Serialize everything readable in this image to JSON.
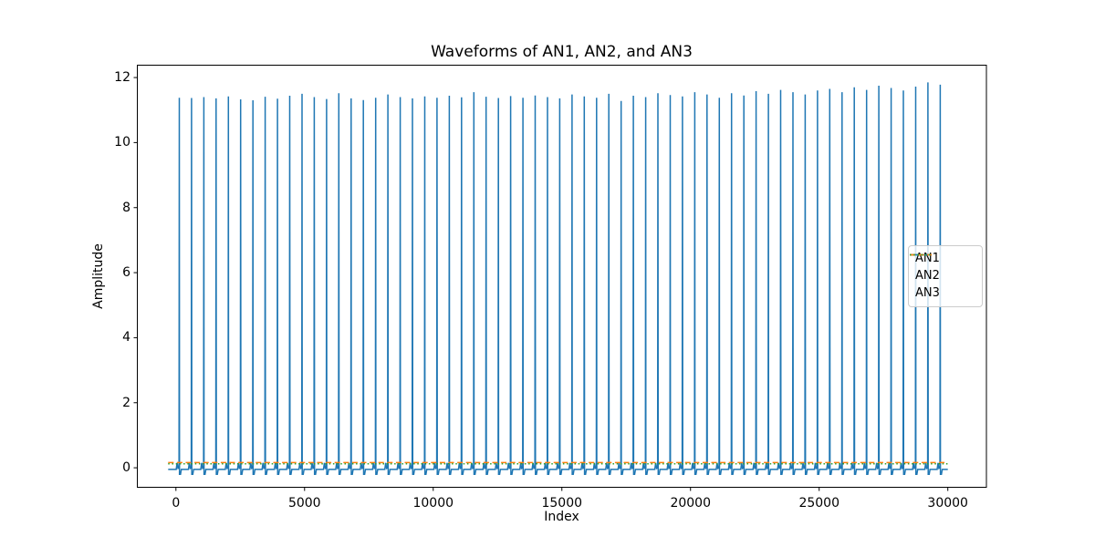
{
  "figure": {
    "title": "Waveforms of AN1, AN2, and AN3",
    "xlabel": "Index",
    "ylabel": "Amplitude"
  },
  "chart_data": {
    "type": "line",
    "title": "Waveforms of AN1, AN2, and AN3",
    "xlabel": "Index",
    "ylabel": "Amplitude",
    "xlim": [
      -1500,
      31500
    ],
    "ylim": [
      -0.6,
      12.38
    ],
    "x_ticks": [
      0,
      5000,
      10000,
      15000,
      20000,
      25000,
      30000
    ],
    "y_ticks": [
      0,
      2,
      4,
      6,
      8,
      10,
      12
    ],
    "grid": false,
    "legend_position": "center right",
    "series": [
      {
        "name": "AN1",
        "color": "#1f77b4",
        "linestyle": "solid",
        "shape": "spike_train",
        "x_range": [
          -300,
          30000
        ],
        "baseline": -0.05,
        "pre_bump": 0.15,
        "post_dip": -0.2,
        "spike_start_x": 130,
        "spike_period": 477,
        "spike_peaks": [
          11.38,
          11.37,
          11.4,
          11.36,
          11.42,
          11.33,
          11.3,
          11.41,
          11.35,
          11.44,
          11.5,
          11.4,
          11.34,
          11.52,
          11.36,
          11.31,
          11.38,
          11.48,
          11.4,
          11.36,
          11.42,
          11.38,
          11.44,
          11.39,
          11.55,
          11.41,
          11.37,
          11.43,
          11.38,
          11.45,
          11.4,
          11.36,
          11.48,
          11.42,
          11.38,
          11.5,
          11.28,
          11.44,
          11.4,
          11.52,
          11.46,
          11.42,
          11.55,
          11.48,
          11.38,
          11.52,
          11.45,
          11.58,
          11.5,
          11.62,
          11.55,
          11.48,
          11.6,
          11.65,
          11.55,
          11.7,
          11.62,
          11.75,
          11.68,
          11.6,
          11.72,
          11.85,
          11.78
        ]
      },
      {
        "name": "AN2",
        "color": "#ff7f0e",
        "linestyle": "dashed",
        "shape": "constant",
        "value": 0.16,
        "x_range": [
          -300,
          30000
        ]
      },
      {
        "name": "AN3",
        "color": "#2ca02c",
        "linestyle": "dotted",
        "shape": "constant",
        "value": 0.12,
        "x_range": [
          -300,
          30000
        ]
      }
    ]
  },
  "legend": {
    "entries": [
      {
        "label": "AN1"
      },
      {
        "label": "AN2"
      },
      {
        "label": "AN3"
      }
    ]
  }
}
